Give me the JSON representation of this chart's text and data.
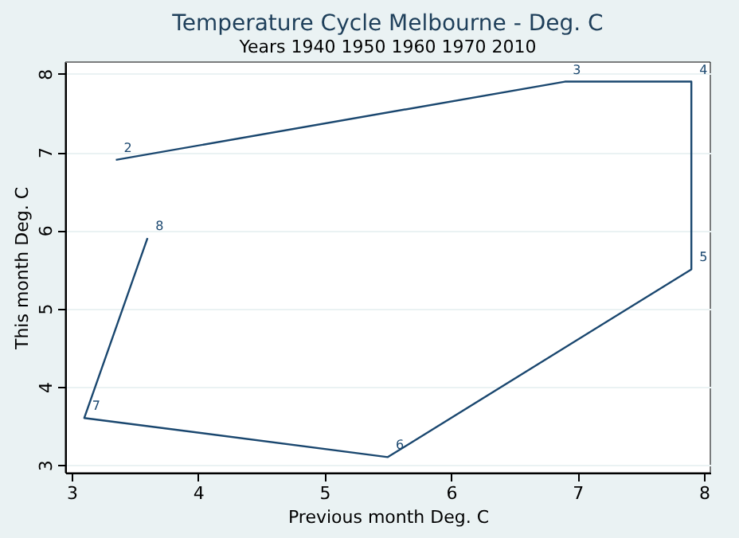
{
  "chart_data": {
    "type": "line",
    "title": "Temperature Cycle Melbourne - Deg. C",
    "subtitle": "Years 1940 1950 1960 1970 2010",
    "xlabel": "Previous month Deg. C",
    "ylabel": "This month Deg. C",
    "x": [
      3.35,
      6.9,
      7.9,
      7.9,
      5.5,
      3.1,
      3.6
    ],
    "series": [
      {
        "color": "#1a476f",
        "values": [
          6.9,
          7.9,
          7.9,
          5.5,
          3.1,
          3.6,
          5.9
        ]
      }
    ],
    "annotations": [
      {
        "text": "2",
        "x": 3.35,
        "y": 6.9
      },
      {
        "text": "3",
        "x": 6.9,
        "y": 7.9
      },
      {
        "text": "4",
        "x": 7.9,
        "y": 7.9
      },
      {
        "text": "5",
        "x": 7.9,
        "y": 5.5
      },
      {
        "text": "6",
        "x": 5.5,
        "y": 3.1
      },
      {
        "text": "7",
        "x": 3.1,
        "y": 3.6
      },
      {
        "text": "8",
        "x": 3.6,
        "y": 5.9
      }
    ],
    "xlim": [
      2.95,
      8.05
    ],
    "ylim": [
      2.9,
      8.15
    ],
    "xticks": [
      3,
      4,
      5,
      6,
      7,
      8
    ],
    "yticks": [
      3,
      4,
      5,
      6,
      7,
      8
    ],
    "grid": "y",
    "marker": "none",
    "line_style": "solid"
  }
}
